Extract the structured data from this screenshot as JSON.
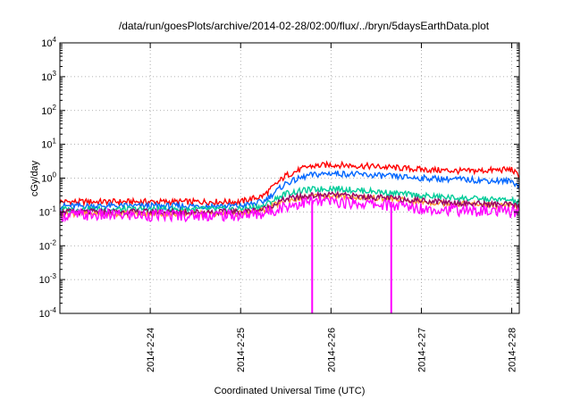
{
  "chart_data": {
    "type": "line",
    "title": "/data/run/goesPlots/archive/2014-02-28/02:00/flux/../bryn/5daysEarthData.plot",
    "xlabel": "Coordinated Universal Time (UTC)",
    "ylabel": "cGy/day",
    "y_scale": "log",
    "ylim": [
      0.0001,
      10000
    ],
    "y_ticks": [
      {
        "value": 0.0001,
        "base": "10",
        "exp": "-4"
      },
      {
        "value": 0.001,
        "base": "10",
        "exp": "-3"
      },
      {
        "value": 0.01,
        "base": "10",
        "exp": "-2"
      },
      {
        "value": 0.1,
        "base": "10",
        "exp": "-1"
      },
      {
        "value": 1,
        "base": "10",
        "exp": "0"
      },
      {
        "value": 10,
        "base": "10",
        "exp": "1"
      },
      {
        "value": 100,
        "base": "10",
        "exp": "2"
      },
      {
        "value": 1000,
        "base": "10",
        "exp": "3"
      },
      {
        "value": 10000,
        "base": "10",
        "exp": "4"
      }
    ],
    "xlim": [
      "2014-02-23 00:00",
      "2014-02-28 02:00"
    ],
    "x_ticks": [
      {
        "date": "2014-02-24 00:00",
        "label": "2014-2-24"
      },
      {
        "date": "2014-02-25 00:00",
        "label": "2014-2-25"
      },
      {
        "date": "2014-02-26 00:00",
        "label": "2014-2-26"
      },
      {
        "date": "2014-02-27 00:00",
        "label": "2014-2-27"
      },
      {
        "date": "2014-02-28 00:00",
        "label": "2014-2-28"
      }
    ],
    "grid": true,
    "series": [
      {
        "color": "#ff0000",
        "x": [
          "2014-02-23 00:00",
          "2014-02-24 00:00",
          "2014-02-25 00:00",
          "2014-02-25 06:00",
          "2014-02-25 12:00",
          "2014-02-25 18:00",
          "2014-02-26 00:00",
          "2014-02-26 12:00",
          "2014-02-27 00:00",
          "2014-02-27 12:00",
          "2014-02-28 00:00",
          "2014-02-28 02:00"
        ],
        "y": [
          0.2,
          0.2,
          0.2,
          0.3,
          1.2,
          2.2,
          2.5,
          2.2,
          1.8,
          1.6,
          1.8,
          1.1
        ]
      },
      {
        "color": "#0066ff",
        "x": [
          "2014-02-23 00:00",
          "2014-02-24 00:00",
          "2014-02-25 00:00",
          "2014-02-25 06:00",
          "2014-02-25 12:00",
          "2014-02-25 18:00",
          "2014-02-26 00:00",
          "2014-02-26 12:00",
          "2014-02-27 00:00",
          "2014-02-27 12:00",
          "2014-02-28 00:00",
          "2014-02-28 02:00"
        ],
        "y": [
          0.15,
          0.15,
          0.15,
          0.2,
          0.7,
          1.2,
          1.4,
          1.2,
          1.0,
          0.9,
          0.8,
          0.6
        ]
      },
      {
        "color": "#00cc99",
        "x": [
          "2014-02-23 00:00",
          "2014-02-24 00:00",
          "2014-02-25 00:00",
          "2014-02-25 06:00",
          "2014-02-25 12:00",
          "2014-02-25 18:00",
          "2014-02-26 00:00",
          "2014-02-26 12:00",
          "2014-02-27 00:00",
          "2014-02-27 12:00",
          "2014-02-28 00:00",
          "2014-02-28 02:00"
        ],
        "y": [
          0.12,
          0.12,
          0.12,
          0.15,
          0.35,
          0.45,
          0.5,
          0.4,
          0.3,
          0.25,
          0.22,
          0.18
        ]
      },
      {
        "color": "#ff9933",
        "x": [
          "2014-02-23 00:00",
          "2014-02-24 00:00",
          "2014-02-25 00:00",
          "2014-02-25 06:00",
          "2014-02-25 12:00",
          "2014-02-25 18:00",
          "2014-02-26 00:00",
          "2014-02-26 12:00",
          "2014-02-27 00:00",
          "2014-02-27 12:00",
          "2014-02-28 00:00",
          "2014-02-28 02:00"
        ],
        "y": [
          0.09,
          0.09,
          0.09,
          0.11,
          0.22,
          0.28,
          0.3,
          0.26,
          0.2,
          0.17,
          0.15,
          0.13
        ]
      },
      {
        "color": "#990066",
        "x": [
          "2014-02-23 00:00",
          "2014-02-24 00:00",
          "2014-02-25 00:00",
          "2014-02-25 06:00",
          "2014-02-25 12:00",
          "2014-02-25 18:00",
          "2014-02-26 00:00",
          "2014-02-26 12:00",
          "2014-02-27 00:00",
          "2014-02-27 12:00",
          "2014-02-28 00:00",
          "2014-02-28 02:00"
        ],
        "y": [
          0.1,
          0.1,
          0.1,
          0.12,
          0.24,
          0.3,
          0.32,
          0.27,
          0.22,
          0.18,
          0.16,
          0.14
        ]
      },
      {
        "color": "#ff00ff",
        "x": [
          "2014-02-23 00:00",
          "2014-02-24 00:00",
          "2014-02-25 00:00",
          "2014-02-25 06:00",
          "2014-02-25 12:00",
          "2014-02-25 18:00",
          "2014-02-26 00:00",
          "2014-02-26 12:00",
          "2014-02-27 00:00",
          "2014-02-27 12:00",
          "2014-02-28 00:00",
          "2014-02-28 02:00"
        ],
        "y": [
          0.08,
          0.08,
          0.08,
          0.09,
          0.15,
          0.2,
          0.2,
          0.17,
          0.13,
          0.11,
          0.1,
          0.09
        ]
      }
    ],
    "spikes": [
      {
        "date": "2014-02-25 19:00",
        "color": "#ff00ff"
      },
      {
        "date": "2014-02-26 16:00",
        "color": "#ff00ff"
      }
    ]
  }
}
